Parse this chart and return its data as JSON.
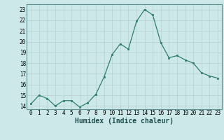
{
  "x": [
    0,
    1,
    2,
    3,
    4,
    5,
    6,
    7,
    8,
    9,
    10,
    11,
    12,
    13,
    14,
    15,
    16,
    17,
    18,
    19,
    20,
    21,
    22,
    23
  ],
  "y": [
    14.2,
    15.0,
    14.7,
    14.0,
    14.5,
    14.5,
    13.9,
    14.3,
    15.1,
    16.7,
    18.8,
    19.8,
    19.3,
    21.9,
    23.0,
    22.5,
    19.9,
    18.5,
    18.7,
    18.3,
    18.0,
    17.1,
    16.8,
    16.6
  ],
  "xlabel": "Humidex (Indice chaleur)",
  "ylim": [
    13.7,
    23.5
  ],
  "xlim": [
    -0.5,
    23.5
  ],
  "yticks": [
    14,
    15,
    16,
    17,
    18,
    19,
    20,
    21,
    22,
    23
  ],
  "xticks": [
    0,
    1,
    2,
    3,
    4,
    5,
    6,
    7,
    8,
    9,
    10,
    11,
    12,
    13,
    14,
    15,
    16,
    17,
    18,
    19,
    20,
    21,
    22,
    23
  ],
  "line_color": "#2e7d6d",
  "marker_color": "#2e7d6d",
  "bg_color": "#cce8e8",
  "grid_major_color": "#b8d4d4",
  "grid_minor_color": "#e0f0f0",
  "spine_color": "#5a9090",
  "tick_font_size": 5.5,
  "xlabel_font_size": 7.0
}
